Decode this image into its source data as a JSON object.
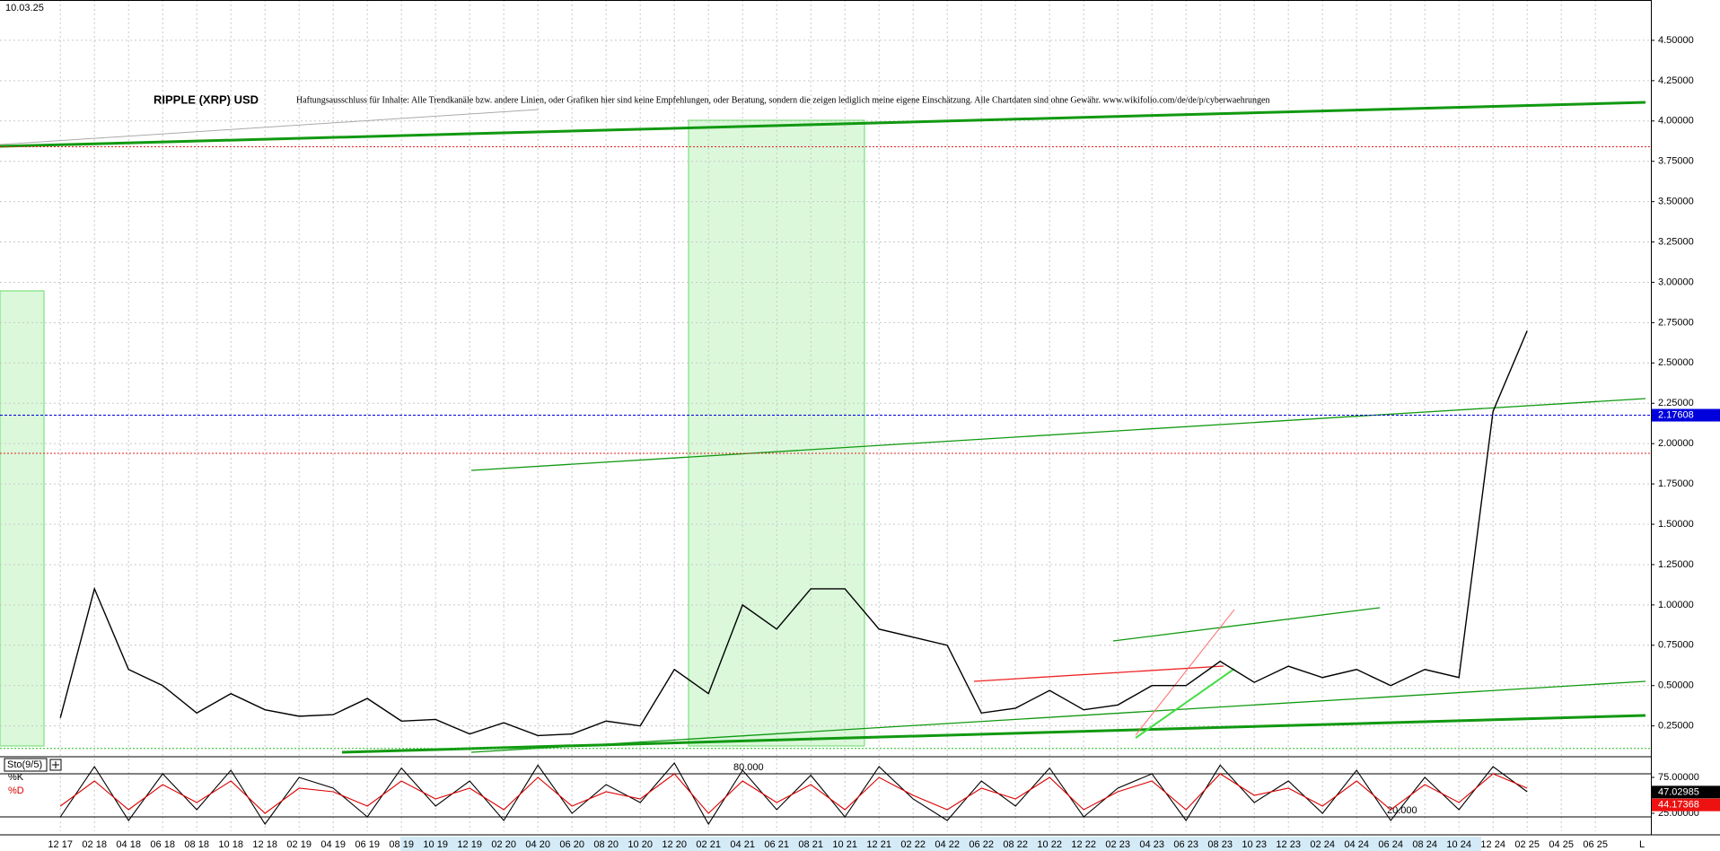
{
  "chart_data": [
    {
      "type": "line",
      "date": "10.03.25",
      "title": "RIPPLE (XRP) USD",
      "subtitle": "Haftungsausschluss für Inhalte: Alle Trendkanäle bzw. andere Linien, oder Grafiken hier sind keine Empfehlungen, oder Beratung, sondern die zeigen lediglich meine eigene Einschätzung. Alle Chartdaten sind ohne Gewähr.  www.wikifolio.com/de/de/p/cyberwaehrungen",
      "categories": [
        "12 17",
        "02 18",
        "04 18",
        "06 18",
        "08 18",
        "10 18",
        "12 18",
        "02 19",
        "04 19",
        "06 19",
        "08 19",
        "10 19",
        "12 19",
        "02 20",
        "04 20",
        "06 20",
        "08 20",
        "10 20",
        "12 20",
        "02 21",
        "04 21",
        "06 21",
        "08 21",
        "10 21",
        "12 21",
        "02 22",
        "04 22",
        "06 22",
        "08 22",
        "10 22",
        "12 22",
        "02 23",
        "04 23",
        "06 23",
        "08 23",
        "10 23",
        "12 23",
        "02 24",
        "04 24",
        "06 24",
        "08 24",
        "10 24",
        "12 24",
        "02 25",
        "04 25",
        "06 25"
      ],
      "series": [
        {
          "name": "XRP",
          "color": "#000000",
          "values": [
            0.3,
            1.1,
            0.6,
            0.5,
            0.33,
            0.45,
            0.35,
            0.31,
            0.32,
            0.42,
            0.28,
            0.29,
            0.2,
            0.27,
            0.19,
            0.2,
            0.28,
            0.25,
            0.6,
            0.45,
            1.0,
            0.85,
            1.1,
            1.1,
            0.85,
            0.8,
            0.75,
            0.33,
            0.36,
            0.47,
            0.35,
            0.38,
            0.5,
            0.5,
            0.65,
            0.52,
            0.62,
            0.55,
            0.6,
            0.5,
            0.6,
            0.55,
            2.2,
            2.7,
            null,
            null
          ]
        }
      ],
      "ylim": [
        0.07,
        4.75
      ],
      "yticks": [
        {
          "value": 0.25,
          "label": "0.25000"
        },
        {
          "value": 0.5,
          "label": "0.50000"
        },
        {
          "value": 0.75,
          "label": "0.75000"
        },
        {
          "value": 1.0,
          "label": "1.00000"
        },
        {
          "value": 1.25,
          "label": "1.25000"
        },
        {
          "value": 1.5,
          "label": "1.50000"
        },
        {
          "value": 1.75,
          "label": "1.75000"
        },
        {
          "value": 2.0,
          "label": "2.00000"
        },
        {
          "value": 2.25,
          "label": "2.25000"
        },
        {
          "value": 2.5,
          "label": "2.50000"
        },
        {
          "value": 2.75,
          "label": "2.75000"
        },
        {
          "value": 3.0,
          "label": "3.00000"
        },
        {
          "value": 3.25,
          "label": "3.25000"
        },
        {
          "value": 3.5,
          "label": "3.50000"
        },
        {
          "value": 3.75,
          "label": "3.75000"
        },
        {
          "value": 4.0,
          "label": "4.00000"
        },
        {
          "value": 4.25,
          "label": "4.25000"
        },
        {
          "value": 4.5,
          "label": "4.50000"
        }
      ],
      "grid": true,
      "levels": [
        {
          "value": 3.84,
          "color": "#e02020"
        },
        {
          "value": 1.94,
          "color": "#e02020"
        },
        {
          "value": 0.11,
          "color": "#22bb22"
        }
      ],
      "current": {
        "value": 2.17608,
        "label": "2.17608",
        "color": "#0000dd"
      }
    },
    {
      "type": "line",
      "title": "Sto(9/5)",
      "series": [
        {
          "name": "%K",
          "color": "#000000",
          "last": {
            "value": 47.02985,
            "label": "47.02985"
          },
          "values": [
            20,
            90,
            15,
            80,
            30,
            85,
            10,
            75,
            60,
            20,
            88,
            35,
            70,
            15,
            92,
            25,
            65,
            40,
            95,
            10,
            85,
            30,
            78,
            20,
            90,
            45,
            15,
            70,
            35,
            88,
            20,
            60,
            80,
            15,
            92,
            40,
            70,
            25,
            85,
            15,
            75,
            30,
            90,
            55,
            null,
            null
          ]
        },
        {
          "name": "%D",
          "color": "#dd0000",
          "last": {
            "value": 44.17368,
            "label": "44.17368"
          },
          "values": [
            35,
            70,
            30,
            65,
            40,
            70,
            25,
            60,
            55,
            35,
            70,
            45,
            60,
            30,
            75,
            35,
            55,
            45,
            80,
            25,
            70,
            40,
            65,
            30,
            75,
            50,
            30,
            60,
            45,
            75,
            30,
            55,
            70,
            30,
            80,
            50,
            60,
            35,
            70,
            30,
            65,
            40,
            80,
            60,
            null,
            null
          ]
        }
      ],
      "ylim": [
        0,
        100
      ],
      "yticks": [
        {
          "value": 25,
          "label": "25.00000"
        },
        {
          "value": 75,
          "label": "75.00000"
        }
      ],
      "levels": [
        {
          "value": 80,
          "label": "80.000"
        },
        {
          "value": 20,
          "label": "20.000"
        }
      ]
    }
  ]
}
